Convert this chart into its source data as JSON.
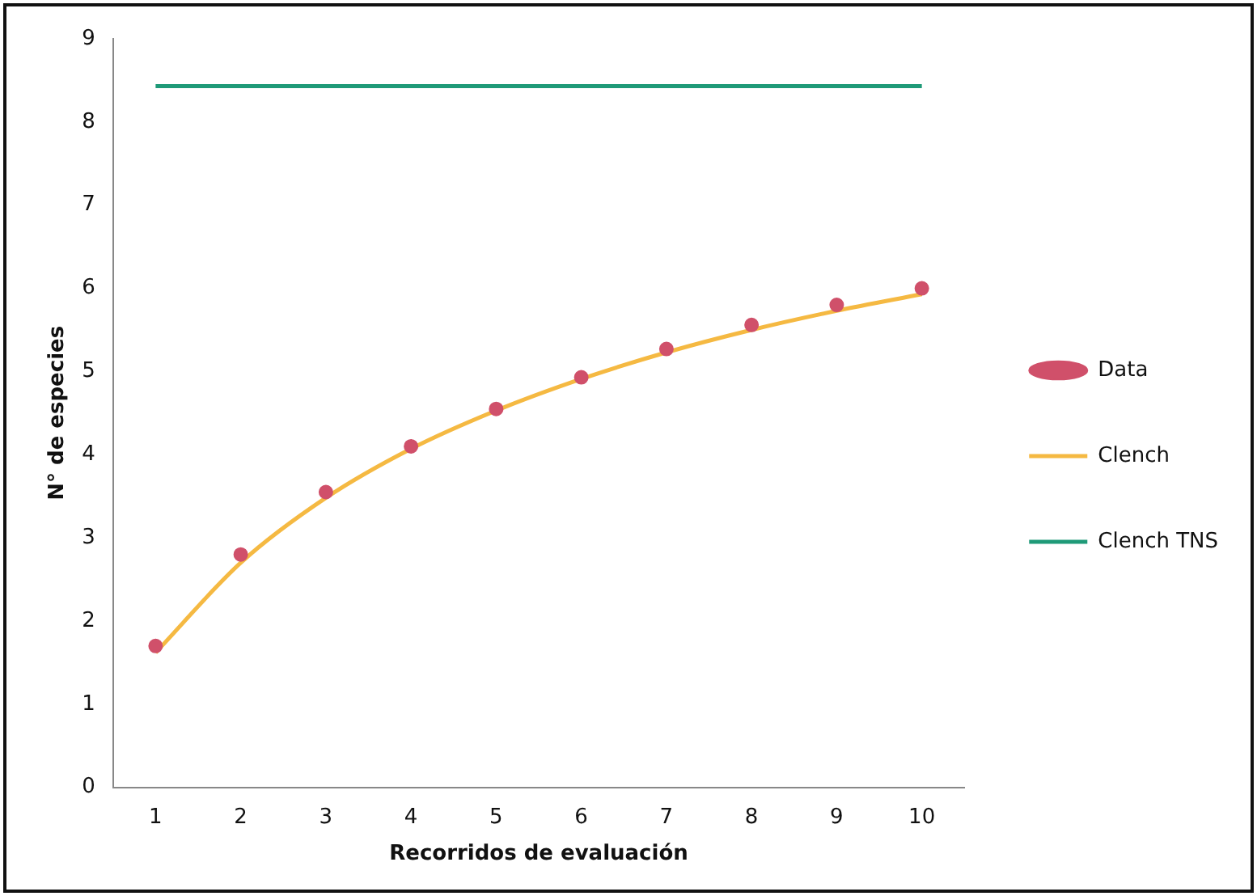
{
  "chart_data": {
    "type": "line",
    "xlabel": "Recorridos de evaluación",
    "ylabel": "N° de especies",
    "categories": [
      "1",
      "2",
      "3",
      "4",
      "5",
      "6",
      "7",
      "8",
      "9",
      "10"
    ],
    "series": [
      {
        "name": "Data",
        "type": "scatter",
        "color": "#d0506a",
        "marker": "circle",
        "values": [
          1.7,
          2.8,
          3.55,
          4.1,
          4.55,
          4.93,
          5.27,
          5.56,
          5.8,
          6.0
        ]
      },
      {
        "name": "Clench",
        "type": "line",
        "color": "#f5b942",
        "marker": "none",
        "values": [
          1.62,
          2.7,
          3.48,
          4.07,
          4.53,
          4.91,
          5.23,
          5.5,
          5.73,
          5.93
        ]
      },
      {
        "name": "Clench TNS",
        "type": "line",
        "color": "#1f9a78",
        "marker": "none",
        "values": [
          8.43,
          8.43,
          8.43,
          8.43,
          8.43,
          8.43,
          8.43,
          8.43,
          8.43,
          8.43
        ]
      }
    ],
    "ylim": [
      0,
      9
    ],
    "yticks": [
      0,
      1,
      2,
      3,
      4,
      5,
      6,
      7,
      8,
      9
    ],
    "grid": false,
    "legend": "right"
  }
}
